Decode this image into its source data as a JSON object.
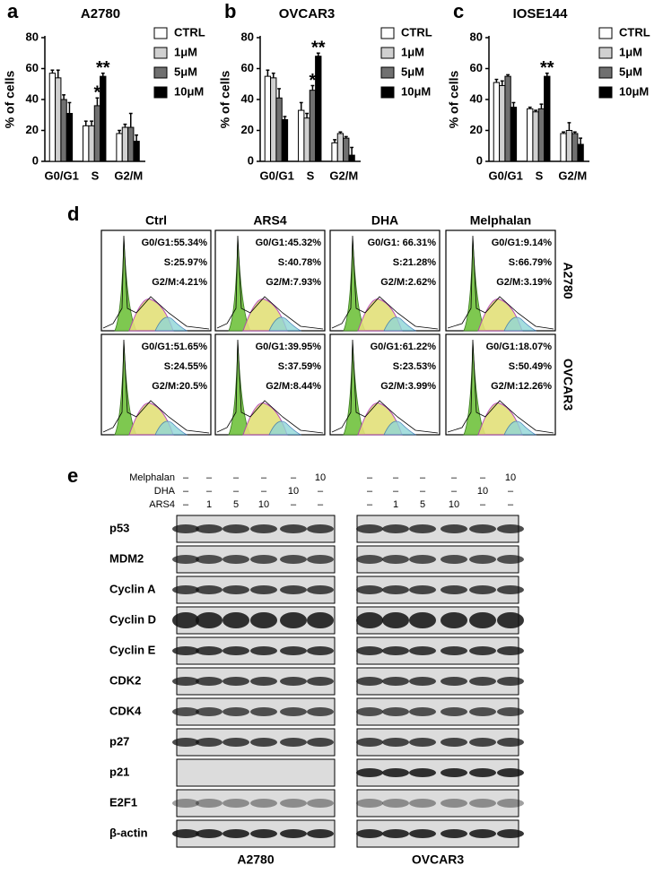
{
  "chart_data": [
    {
      "type": "bar",
      "panel": "a",
      "title": "A2780",
      "y_label": "% of cells",
      "categories": [
        "G0/G1",
        "S",
        "G2/M"
      ],
      "series": [
        {
          "name": "CTRL",
          "color": "#ffffff",
          "values": [
            57,
            23,
            18
          ],
          "errors": [
            2,
            3,
            2
          ]
        },
        {
          "name": "1μM",
          "color": "#d0d0d0",
          "values": [
            54,
            23,
            22
          ],
          "errors": [
            5,
            3,
            2
          ]
        },
        {
          "name": "5μM",
          "color": "#707070",
          "values": [
            40,
            36,
            22
          ],
          "errors": [
            3,
            5,
            9
          ]
        },
        {
          "name": "10μM",
          "color": "#000000",
          "values": [
            31,
            55,
            13
          ],
          "errors": [
            7,
            2,
            4
          ]
        }
      ],
      "ylim": [
        0,
        80
      ],
      "yticks": [
        0,
        20,
        40,
        60,
        80
      ],
      "annotations": [
        {
          "text": "*",
          "category": "S",
          "series": "5μM"
        },
        {
          "text": "**",
          "category": "S",
          "series": "10μM"
        }
      ]
    },
    {
      "type": "bar",
      "panel": "b",
      "title": "OVCAR3",
      "y_label": "% of cells",
      "categories": [
        "G0/G1",
        "S",
        "G2/M"
      ],
      "series": [
        {
          "name": "CTRL",
          "color": "#ffffff",
          "values": [
            55,
            33,
            12
          ],
          "errors": [
            4,
            5,
            2
          ]
        },
        {
          "name": "1μM",
          "color": "#d0d0d0",
          "values": [
            54,
            28,
            18
          ],
          "errors": [
            3,
            3,
            1
          ]
        },
        {
          "name": "5μM",
          "color": "#707070",
          "values": [
            41,
            46,
            15
          ],
          "errors": [
            6,
            3,
            1
          ]
        },
        {
          "name": "10μM",
          "color": "#000000",
          "values": [
            27,
            68,
            4
          ],
          "errors": [
            2,
            2,
            5
          ]
        }
      ],
      "ylim": [
        0,
        80
      ],
      "yticks": [
        0,
        20,
        40,
        60,
        80
      ],
      "annotations": [
        {
          "text": "*",
          "category": "S",
          "series": "5μM"
        },
        {
          "text": "**",
          "category": "S",
          "series": "10μM"
        }
      ]
    },
    {
      "type": "bar",
      "panel": "c",
      "title": "IOSE144",
      "y_label": "% of cells",
      "categories": [
        "G0/G1",
        "S",
        "G2/M"
      ],
      "series": [
        {
          "name": "CTRL",
          "color": "#ffffff",
          "values": [
            51,
            34,
            18
          ],
          "errors": [
            2,
            1,
            1
          ]
        },
        {
          "name": "1μM",
          "color": "#d0d0d0",
          "values": [
            49,
            32,
            20
          ],
          "errors": [
            3,
            1,
            5
          ]
        },
        {
          "name": "5μM",
          "color": "#707070",
          "values": [
            55,
            34,
            18
          ],
          "errors": [
            1,
            3,
            1
          ]
        },
        {
          "name": "10μM",
          "color": "#000000",
          "values": [
            35,
            55,
            11
          ],
          "errors": [
            3,
            2,
            4
          ]
        }
      ],
      "ylim": [
        0,
        80
      ],
      "yticks": [
        0,
        20,
        40,
        60,
        80
      ],
      "annotations": [
        {
          "text": "**",
          "category": "S",
          "series": "10μM"
        }
      ]
    }
  ],
  "flow": {
    "label": "d",
    "columns": [
      "Ctrl",
      "ARS4",
      "DHA",
      "Melphalan"
    ],
    "rows": [
      {
        "name": "A2780",
        "cells": [
          [
            "G0/G1:55.34%",
            "S:25.97%",
            "G2/M:4.21%"
          ],
          [
            "G0/G1:45.32%",
            "S:40.78%",
            "G2/M:7.93%"
          ],
          [
            "G0/G1: 66.31%",
            "S:21.28%",
            "G2/M:2.62%"
          ],
          [
            "G0/G1:9.14%",
            "S:66.79%",
            "G2/M:3.19%"
          ]
        ]
      },
      {
        "name": "OVCAR3",
        "cells": [
          [
            "G0/G1:51.65%",
            "S:24.55%",
            "G2/M:20.5%"
          ],
          [
            "G0/G1:39.95%",
            "S:37.59%",
            "G2/M:8.44%"
          ],
          [
            "G0/G1:61.22%",
            "S:23.53%",
            "G2/M:3.99%"
          ],
          [
            "G0/G1:18.07%",
            "S:50.49%",
            "G2/M:12.26%"
          ]
        ]
      }
    ]
  },
  "blot": {
    "label": "e",
    "treatments": [
      {
        "name": "Melphalan",
        "lanes": [
          "–",
          "–",
          "–",
          "–",
          "–",
          "10"
        ]
      },
      {
        "name": "DHA",
        "lanes": [
          "–",
          "–",
          "–",
          "–",
          "10",
          "–"
        ]
      },
      {
        "name": "ARS4",
        "lanes": [
          "–",
          "1",
          "5",
          "10",
          "–",
          "–"
        ]
      }
    ],
    "proteins": [
      "p53",
      "MDM2",
      "Cyclin A",
      "Cyclin D",
      "Cyclin E",
      "CDK2",
      "CDK4",
      "p27",
      "p21",
      "E2F1",
      "β-actin"
    ],
    "cell_lines": [
      "A2780",
      "OVCAR3"
    ]
  }
}
